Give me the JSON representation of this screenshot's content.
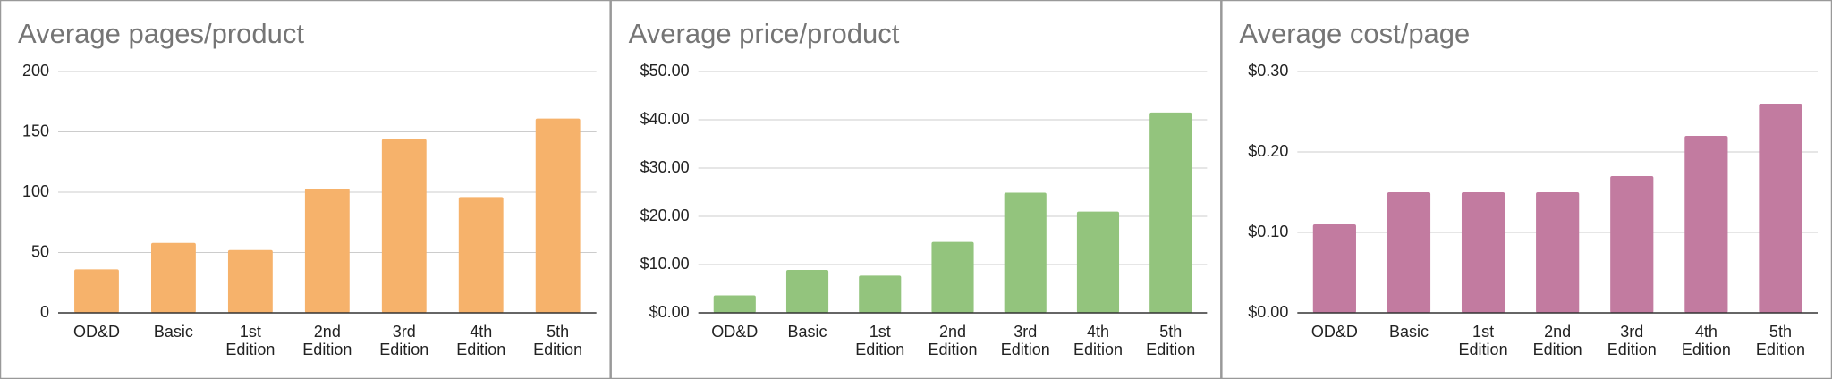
{
  "chart_data": [
    {
      "type": "bar",
      "title": "Average pages/product",
      "categories": [
        "OD&D",
        "Basic",
        "1st Edition",
        "2nd Edition",
        "3rd Edition",
        "4th Edition",
        "5th Edition"
      ],
      "values": [
        36,
        58,
        52,
        103,
        144,
        96,
        161
      ],
      "color": "#f6b26b",
      "ylim": [
        0,
        200
      ],
      "yticks": [
        0,
        50,
        100,
        150,
        200
      ],
      "grid": true
    },
    {
      "type": "bar",
      "title": "Average price/product",
      "categories": [
        "OD&D",
        "Basic",
        "1st Edition",
        "2nd Edition",
        "3rd Edition",
        "4th Edition",
        "5th Edition"
      ],
      "values": [
        3.6,
        8.9,
        7.7,
        14.7,
        24.9,
        21.0,
        41.5
      ],
      "color": "#93c47d",
      "ylim": [
        0,
        50
      ],
      "yticks": [
        {
          "value": 0,
          "label": "$0.00"
        },
        {
          "value": 10,
          "label": "$10.00"
        },
        {
          "value": 20,
          "label": "$20.00"
        },
        {
          "value": 30,
          "label": "$30.00"
        },
        {
          "value": 40,
          "label": "$40.00"
        },
        {
          "value": 50,
          "label": "$50.00"
        }
      ],
      "grid": true
    },
    {
      "type": "bar",
      "title": "Average cost/page",
      "categories": [
        "OD&D",
        "Basic",
        "1st Edition",
        "2nd Edition",
        "3rd Edition",
        "4th Edition",
        "5th Edition"
      ],
      "values": [
        0.11,
        0.15,
        0.15,
        0.15,
        0.17,
        0.22,
        0.26
      ],
      "color": "#c27ba0",
      "ylim": [
        0,
        0.3
      ],
      "yticks": [
        {
          "value": 0,
          "label": "$0.00"
        },
        {
          "value": 0.1,
          "label": "$0.10"
        },
        {
          "value": 0.2,
          "label": "$0.20"
        },
        {
          "value": 0.3,
          "label": "$0.30"
        }
      ],
      "grid": true
    }
  ]
}
